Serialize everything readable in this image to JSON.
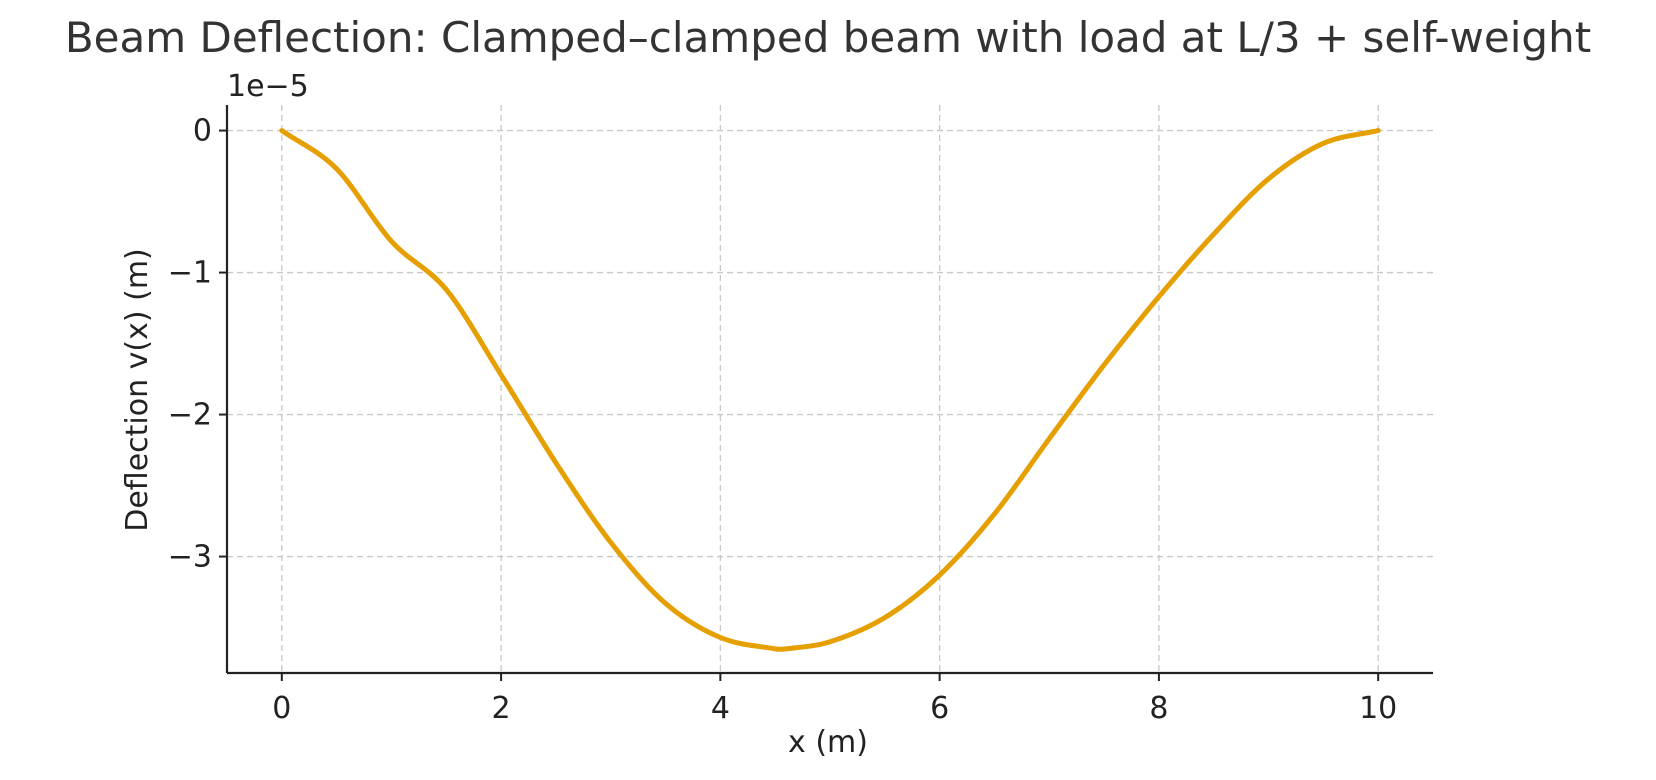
{
  "chart_data": {
    "type": "line",
    "title": "Beam Deflection: Clamped–clamped beam with load at L/3 + self-weight",
    "xlabel": "x (m)",
    "ylabel": "Deflection v(x) (m)",
    "y_offset_text": "1e−5",
    "y_scale_factor": 1e-05,
    "xlim": [
      -0.5,
      10.5
    ],
    "ylim": [
      -3.82e-05,
      1.8e-06
    ],
    "x_ticks": [
      0,
      2,
      4,
      6,
      8,
      10
    ],
    "x_tick_labels": [
      "0",
      "2",
      "4",
      "6",
      "8",
      "10"
    ],
    "y_ticks": [
      0,
      -1e-05,
      -2e-05,
      -3e-05
    ],
    "y_tick_labels": [
      "0",
      "−1",
      "−2",
      "−3"
    ],
    "grid": true,
    "legend": "none",
    "series": [
      {
        "color": "#E69F00",
        "x": [
          0,
          0.5,
          1,
          1.5,
          2,
          2.5,
          3,
          3.5,
          4,
          4.5,
          4.6,
          5,
          5.5,
          6,
          6.5,
          7,
          7.5,
          8,
          8.5,
          9,
          9.5,
          10
        ],
        "y": [
          0,
          -2.7e-06,
          -7.8e-06,
          -1.12e-05,
          -1.72e-05,
          -2.34e-05,
          -2.9e-05,
          -3.33e-05,
          -3.57e-05,
          -3.65e-05,
          -3.65e-05,
          -3.6e-05,
          -3.43e-05,
          -3.13e-05,
          -2.7e-05,
          -2.17e-05,
          -1.65e-05,
          -1.17e-05,
          -7.3e-06,
          -3.4e-06,
          -9e-07,
          0
        ]
      }
    ]
  }
}
